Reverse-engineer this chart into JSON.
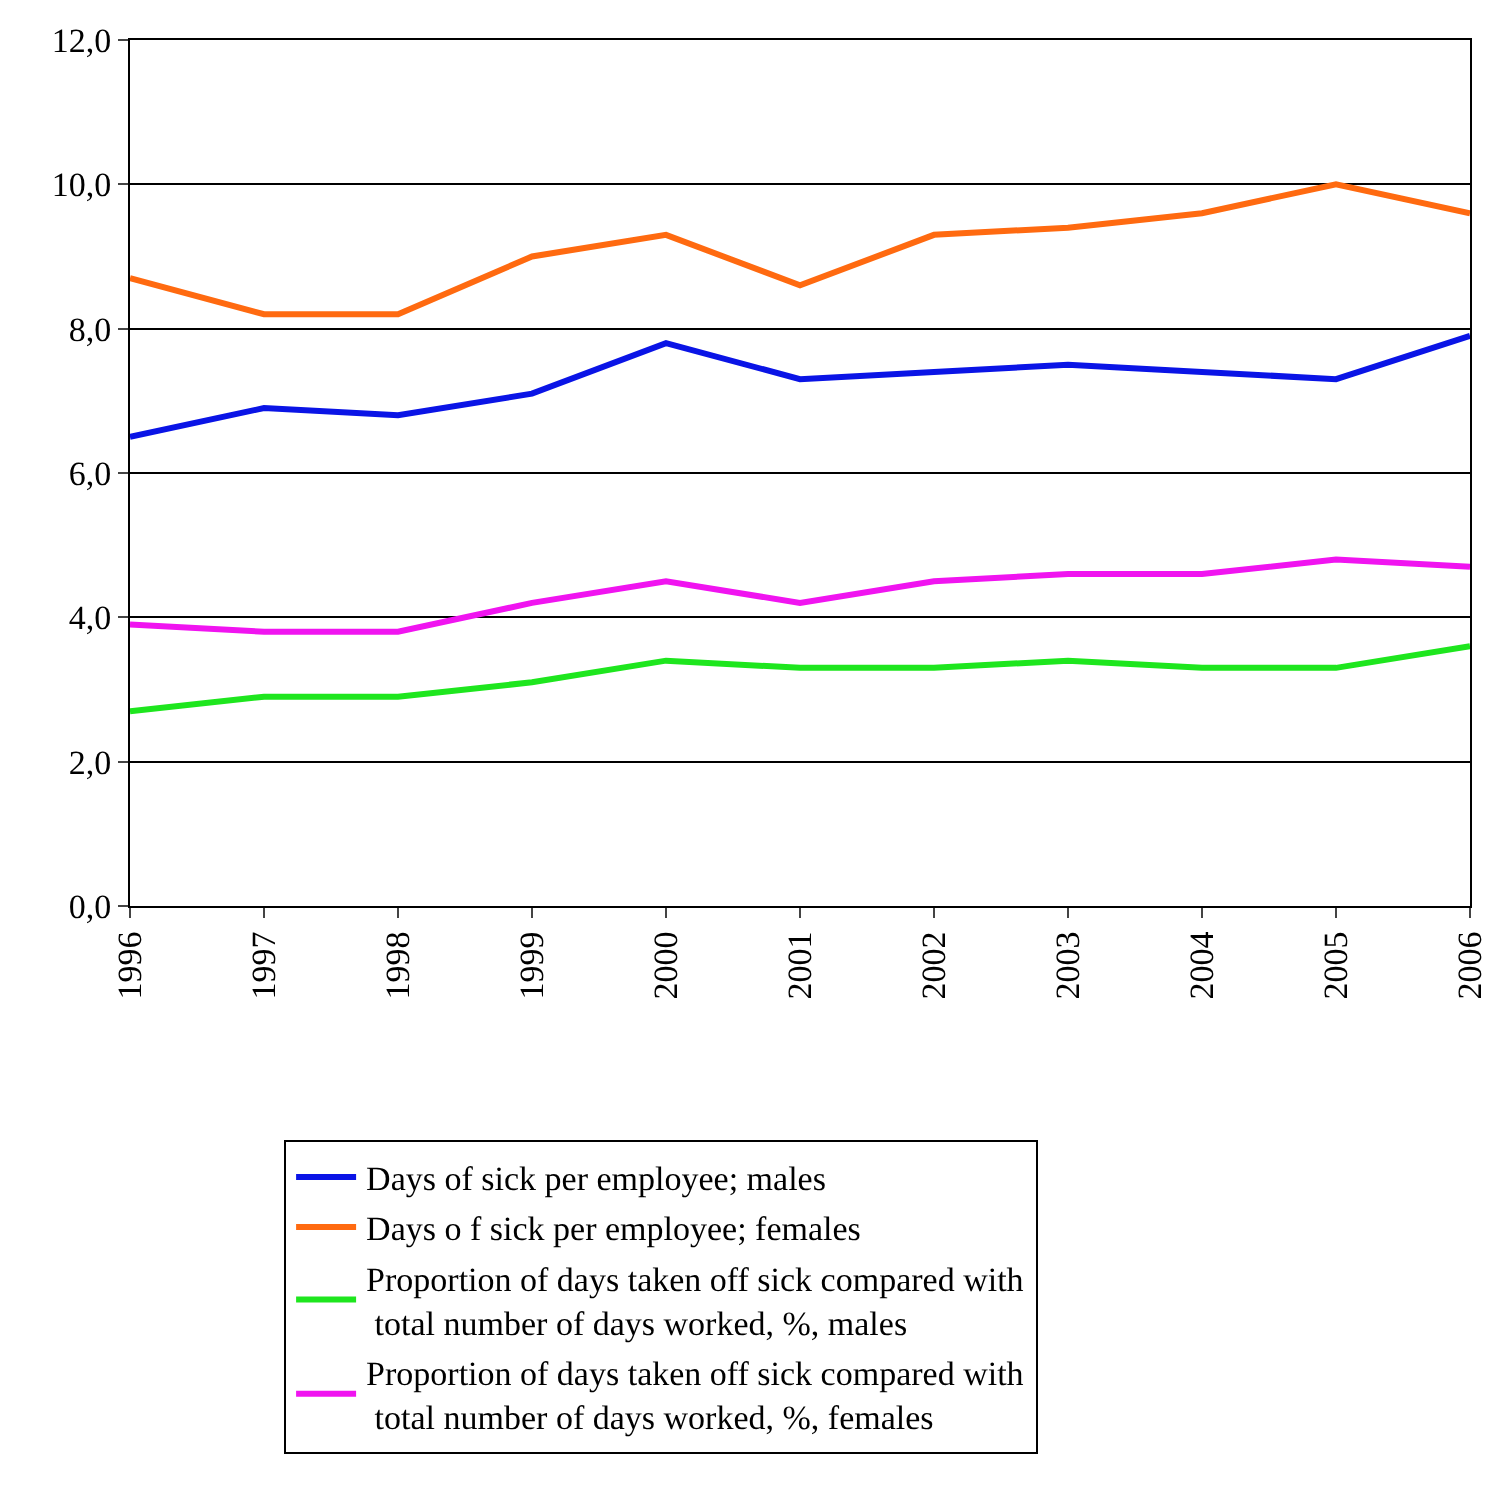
{
  "chart_data": {
    "type": "line",
    "categories": [
      "1996",
      "1997",
      "1998",
      "1999",
      "2000",
      "2001",
      "2002",
      "2003",
      "2004",
      "2005",
      "2006"
    ],
    "series": [
      {
        "name": "Days of sick per employee; males",
        "color": "#0a14e6",
        "values": [
          6.5,
          6.9,
          6.8,
          7.1,
          7.8,
          7.3,
          7.4,
          7.5,
          7.4,
          7.3,
          7.9
        ]
      },
      {
        "name": "Days o f sick per employee; females",
        "color": "#ff6a10",
        "values": [
          8.7,
          8.2,
          8.2,
          9.0,
          9.3,
          8.6,
          9.3,
          9.4,
          9.6,
          10.0,
          9.6
        ]
      },
      {
        "name": "Proportion of days taken off sick compared with total number of days worked, %, males",
        "color": "#1ee61e",
        "values": [
          2.7,
          2.9,
          2.9,
          3.1,
          3.4,
          3.3,
          3.3,
          3.4,
          3.3,
          3.3,
          3.6
        ]
      },
      {
        "name": "Proportion of days taken off sick compared with total number of days worked, %, females",
        "color": "#f014f0",
        "values": [
          3.9,
          3.8,
          3.8,
          4.2,
          4.5,
          4.2,
          4.5,
          4.6,
          4.6,
          4.8,
          4.7
        ]
      }
    ],
    "ylim": [
      0,
      12
    ],
    "yticks": [
      {
        "value": 0,
        "label": "0,0"
      },
      {
        "value": 2,
        "label": "2,0"
      },
      {
        "value": 4,
        "label": "4,0"
      },
      {
        "value": 6,
        "label": "6,0"
      },
      {
        "value": 8,
        "label": "8,0"
      },
      {
        "value": 10,
        "label": "10,0"
      },
      {
        "value": 12,
        "label": "12,0"
      }
    ],
    "grid": "y",
    "legend": "bottom",
    "marker": "none",
    "line_style": "solid"
  }
}
